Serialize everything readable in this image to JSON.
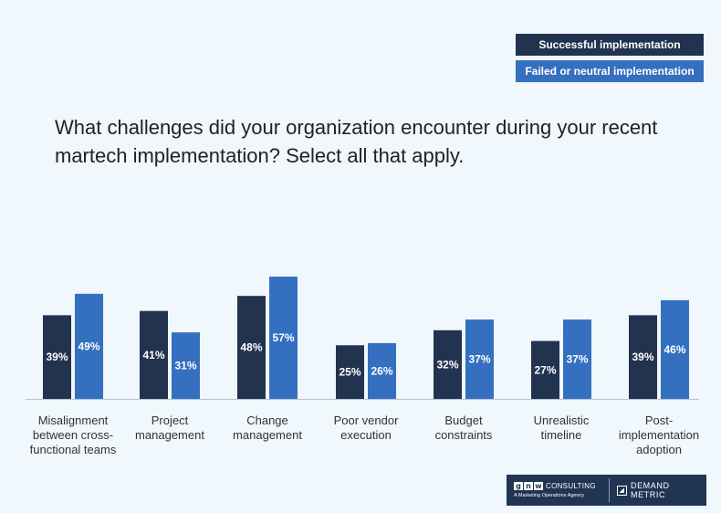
{
  "legend": {
    "items": [
      {
        "label": "Successful implementation",
        "color": "#22334f"
      },
      {
        "label": "Failed or neutral implementation",
        "color": "#3470bf"
      }
    ]
  },
  "question": "What challenges did your organization encounter during your recent martech implementation? Select all that apply.",
  "chart_data": {
    "type": "bar",
    "categories": [
      [
        "Misalignment",
        "between cross-",
        "functional teams"
      ],
      [
        "Project",
        "management"
      ],
      [
        "Change",
        "management"
      ],
      [
        "Poor vendor",
        "execution"
      ],
      [
        "Budget",
        "constraints"
      ],
      [
        "Unrealistic",
        "timeline"
      ],
      [
        "Post-",
        "implementation",
        "adoption"
      ]
    ],
    "series": [
      {
        "name": "Successful implementation",
        "color": "#22334f",
        "values": [
          39,
          41,
          48,
          25,
          32,
          27,
          39
        ]
      },
      {
        "name": "Failed or neutral implementation",
        "color": "#3470bf",
        "values": [
          49,
          31,
          57,
          26,
          37,
          37,
          46
        ]
      }
    ],
    "value_suffix": "%",
    "grid": false,
    "legend_position": "top-right"
  },
  "branding": {
    "gnw_letters": [
      "g",
      "n",
      "w"
    ],
    "gnw_word": "CONSULTING",
    "gnw_tagline": "A Marketing Operations Agency",
    "dm_name": "DEMAND METRIC"
  }
}
